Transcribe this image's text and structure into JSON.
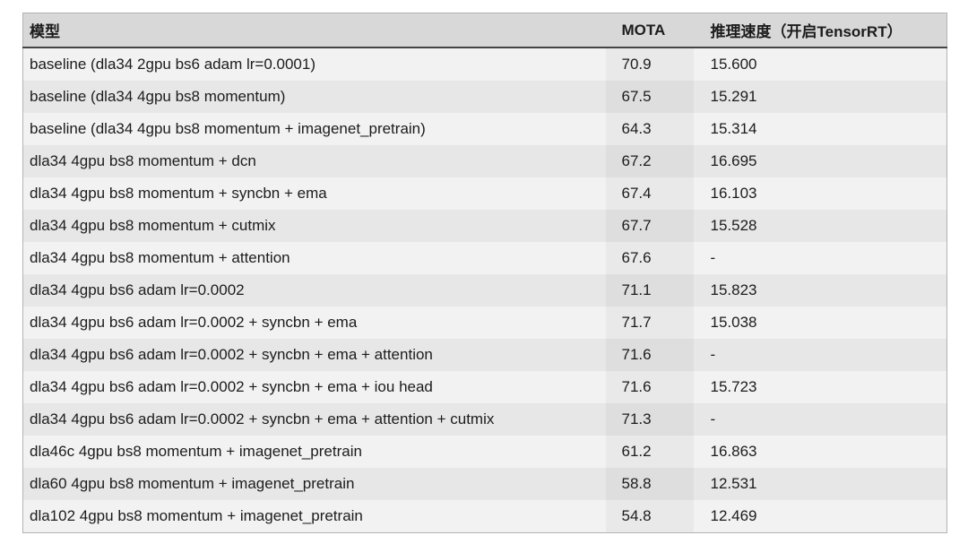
{
  "table": {
    "columns": {
      "model": "模型",
      "mota": "MOTA",
      "speed": "推理速度（开启TensorRT）"
    },
    "rows": [
      {
        "model": "baseline (dla34 2gpu bs6 adam lr=0.0001)",
        "mota": "70.9",
        "speed": "15.600"
      },
      {
        "model": "baseline (dla34 4gpu bs8 momentum)",
        "mota": "67.5",
        "speed": "15.291"
      },
      {
        "model": "baseline (dla34 4gpu bs8 momentum + imagenet_pretrain)",
        "mota": "64.3",
        "speed": "15.314"
      },
      {
        "model": "dla34 4gpu bs8 momentum + dcn",
        "mota": "67.2",
        "speed": "16.695"
      },
      {
        "model": "dla34 4gpu bs8 momentum + syncbn + ema",
        "mota": "67.4",
        "speed": "16.103"
      },
      {
        "model": "dla34 4gpu bs8 momentum + cutmix",
        "mota": "67.7",
        "speed": "15.528"
      },
      {
        "model": "dla34 4gpu bs8 momentum + attention",
        "mota": "67.6",
        "speed": "-"
      },
      {
        "model": "dla34 4gpu bs6 adam lr=0.0002",
        "mota": "71.1",
        "speed": "15.823"
      },
      {
        "model": "dla34 4gpu bs6 adam lr=0.0002 + syncbn + ema",
        "mota": "71.7",
        "speed": "15.038"
      },
      {
        "model": "dla34 4gpu bs6 adam lr=0.0002 + syncbn + ema + attention",
        "mota": "71.6",
        "speed": "-"
      },
      {
        "model": "dla34 4gpu bs6 adam lr=0.0002 + syncbn + ema + iou head",
        "mota": "71.6",
        "speed": "15.723"
      },
      {
        "model": "dla34 4gpu bs6 adam lr=0.0002 + syncbn + ema + attention + cutmix",
        "mota": "71.3",
        "speed": "-"
      },
      {
        "model": "dla46c 4gpu bs8 momentum + imagenet_pretrain",
        "mota": "61.2",
        "speed": "16.863"
      },
      {
        "model": "dla60 4gpu bs8 momentum + imagenet_pretrain",
        "mota": "58.8",
        "speed": "12.531"
      },
      {
        "model": "dla102 4gpu bs8 momentum + imagenet_pretrain",
        "mota": "54.8",
        "speed": "12.469"
      }
    ]
  },
  "colors": {
    "header_bg": "#d8d8d8",
    "row_odd_bg": "#f2f2f2",
    "row_even_bg": "#e7e7e7",
    "mota_band_odd_bg": "#e9e9e9",
    "mota_band_even_bg": "#dedede",
    "header_underline": "#454545",
    "outer_border": "#b3b3b3",
    "text": "#1c1c1c"
  }
}
